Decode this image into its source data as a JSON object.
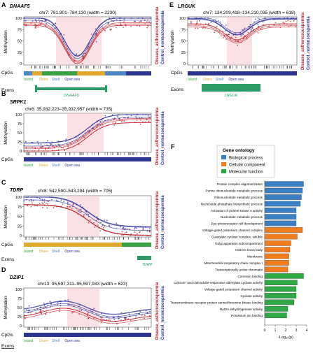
{
  "colors": {
    "disease": "#c0202a",
    "control": "#2a2f9e",
    "highlight": "#f6c9cf",
    "island": "#3aa045",
    "shore": "#e0a82e",
    "shelf": "#4f86c6",
    "opensea": "#2c3590",
    "exon": "#2e9a68",
    "bp": "#3b7fc4",
    "cc": "#f07d20",
    "mf": "#31a846"
  },
  "common": {
    "ylabel": "Methylation",
    "cpgs": "CpGs",
    "exons": "Exons",
    "disease_label": "Disease_asthenozoospermia",
    "control_label": "Control_normozoospermia",
    "legend": [
      "Island",
      "Shore",
      "Shelf",
      "Open sea"
    ],
    "yticks": [
      "0",
      "25",
      "50",
      "75",
      "100"
    ]
  },
  "panels": {
    "A": {
      "letter": "A",
      "gene": "DNAAF5",
      "coord": "chr7: 781,901–784,130 (width = 2230)",
      "exon": "DNAAF5"
    },
    "B": {
      "letter": "B",
      "gene": "SRPK1",
      "coord": "chr6: 35,932,223–35,932,957 (width = 735)"
    },
    "C": {
      "letter": "C",
      "gene": "TDRP",
      "coord": "chr8: 542,590–543,294 (width = 705)",
      "exon": "TDRP"
    },
    "D": {
      "letter": "D",
      "gene": "DZIP1",
      "coord": "chr13: 95,597,311–95,597,933 (width = 623)"
    },
    "E": {
      "letter": "E",
      "gene": "LRGUK",
      "coord": "chr7: 134,209,418–134,210,035 (width = 618)",
      "exon": "LRGUK"
    }
  },
  "panel_f": {
    "letter": "F",
    "legend_title": "Gene ontology",
    "legend": [
      "Biological process",
      "Cellular component",
      "Molecular function"
    ],
    "xlabel": "-Log₁₀(p)",
    "xticks": [
      "0",
      "1",
      "2",
      "3",
      "4"
    ]
  },
  "chart_data": {
    "type": "bar",
    "orientation": "horizontal",
    "xlabel": "-Log₁₀(p)",
    "xlim": [
      0,
      4
    ],
    "categories": [
      "Protein complex oligomerization",
      "Purine ribonucleotide metabolic process",
      "Ribonucleotide metabolic process",
      "Nucleoside phosphate biosynthetic process",
      "Activation of protein kinase A activity",
      "Nucleotide metabolic process",
      "Eye photoreceptor cell development",
      "Voltage-gated potassium channel complex",
      "Guanylate cyclase complex, soluble",
      "Golgi apparatus subcompartment",
      "Histone locus body",
      "Membrane",
      "Mitochondrial respiratory chain complex I",
      "Transcriptionally active chromatin",
      "Connexin binding",
      "Calcium- and calmodulin-responsive adenylate cyclase activity",
      "Voltage-gated potassium channel activity",
      "Cyclase activity",
      "Transmembrane receptor protein serine/threonine kinase binding",
      "NADH dehydrogenase activity",
      "Potassium ion binding"
    ],
    "values": [
      3.7,
      3.6,
      3.5,
      3.4,
      3.0,
      3.0,
      3.0,
      3.6,
      3.1,
      2.5,
      2.4,
      2.3,
      2.3,
      2.2,
      3.7,
      3.1,
      3.0,
      3.0,
      2.8,
      2.2,
      2.1
    ],
    "groups": [
      "Biological process",
      "Biological process",
      "Biological process",
      "Biological process",
      "Biological process",
      "Biological process",
      "Biological process",
      "Cellular component",
      "Cellular component",
      "Cellular component",
      "Cellular component",
      "Cellular component",
      "Cellular component",
      "Cellular component",
      "Molecular function",
      "Molecular function",
      "Molecular function",
      "Molecular function",
      "Molecular function",
      "Molecular function",
      "Molecular function"
    ]
  }
}
